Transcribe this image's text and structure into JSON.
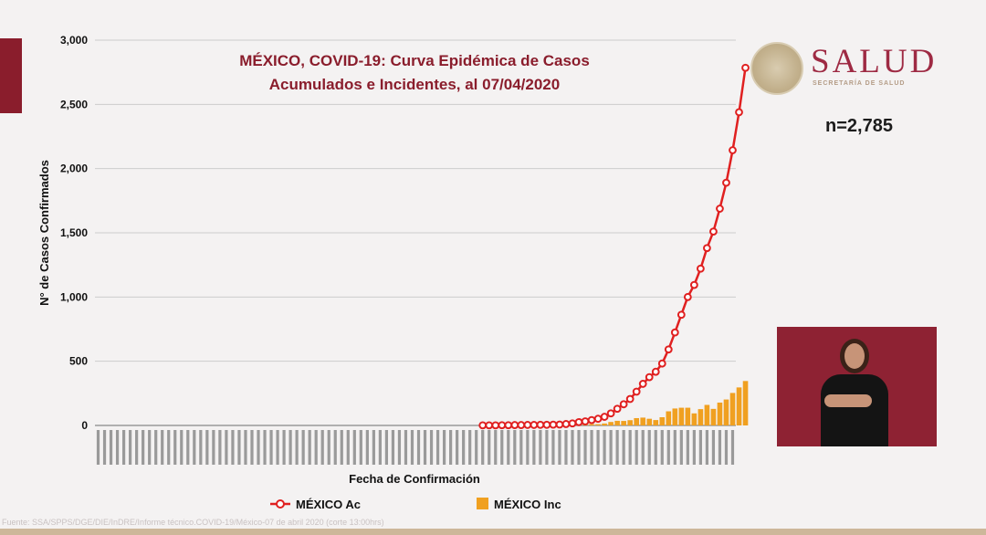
{
  "header": {
    "logo_text": "SALUD",
    "logo_subtext": "SECRETARÍA DE SALUD",
    "n_label": "n=2,785"
  },
  "colors": {
    "accent": "#8a1d2c",
    "brand": "#9e2a43",
    "series_ac": "#e02020",
    "series_inc": "#f0a020"
  },
  "chart_data": {
    "type": "line",
    "title_line1": "MÉXICO, COVID-19: Curva Epidémica de Casos",
    "title_line2": "Acumulados e Incidentes, al 07/04/2020",
    "xlabel": "Fecha de Confirmación",
    "ylabel": "N° de Casos Confirmados",
    "ylim": [
      0,
      3000
    ],
    "yticks": [
      "0",
      "500",
      "1,000",
      "1,500",
      "2,000",
      "2,500",
      "3,000"
    ],
    "grid": true,
    "legend_position": "bottom",
    "num_dates": 100,
    "series": [
      {
        "name": "MÉXICO Ac",
        "kind": "line",
        "start_index": 60,
        "values": [
          1,
          1,
          1,
          2,
          2,
          3,
          3,
          4,
          4,
          5,
          5,
          6,
          7,
          11,
          16,
          26,
          32,
          42,
          52,
          67,
          94,
          130,
          165,
          206,
          263,
          324,
          376,
          418,
          482,
          592,
          724,
          862,
          1000,
          1094,
          1221,
          1381,
          1510,
          1688,
          1890,
          2143,
          2439,
          2785
        ]
      },
      {
        "name": "MÉXICO Inc",
        "kind": "bar",
        "start_index": 60,
        "values": [
          1,
          0,
          0,
          1,
          0,
          1,
          0,
          1,
          0,
          1,
          0,
          1,
          1,
          4,
          5,
          10,
          6,
          10,
          10,
          15,
          27,
          36,
          35,
          41,
          57,
          61,
          52,
          42,
          64,
          110,
          132,
          138,
          138,
          94,
          127,
          160,
          129,
          178,
          202,
          253,
          296,
          346
        ]
      }
    ],
    "source": "Fuente: SSA/SPPS/DGE/DIE/InDRE/Informe técnico.COVID-19/México-07 de abril 2020 (corte 13:00hrs)"
  }
}
